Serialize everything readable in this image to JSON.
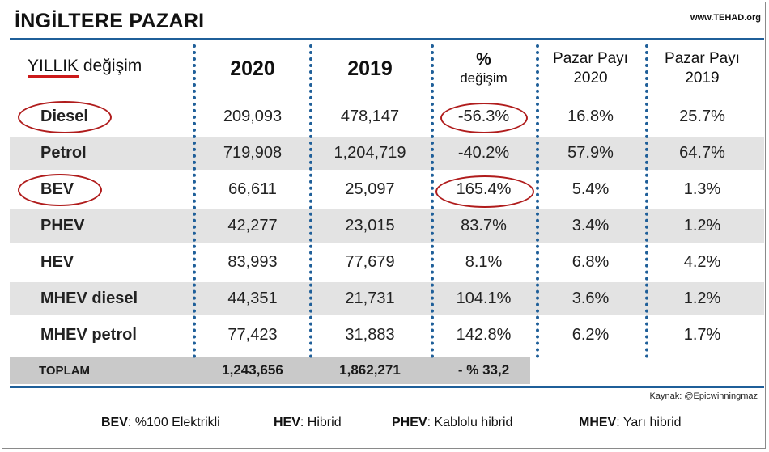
{
  "title": "İNGİLTERE PAZARI",
  "site": "www.TEHAD.org",
  "header": {
    "label_underlined": "YILLIK",
    "label_rest": " değişim",
    "col_2020": "2020",
    "col_2019": "2019",
    "col_pct_top": "%",
    "col_pct_bottom": "değişim",
    "col_share2020_top": "Pazar Payı",
    "col_share2020_bottom": "2020",
    "col_share2019_top": "Pazar Payı",
    "col_share2019_bottom": "2019"
  },
  "chart_data": {
    "type": "table",
    "columns": [
      "YILLIK değişim",
      "2020",
      "2019",
      "% değişim",
      "Pazar Payı 2020",
      "Pazar Payı 2019"
    ],
    "rows": [
      {
        "label": "Diesel",
        "v2020": "209,093",
        "v2019": "478,147",
        "pct": "-56.3%",
        "share2020": "16.8%",
        "share2019": "25.7%"
      },
      {
        "label": "Petrol",
        "v2020": "719,908",
        "v2019": "1,204,719",
        "pct": "-40.2%",
        "share2020": "57.9%",
        "share2019": "64.7%"
      },
      {
        "label": "BEV",
        "v2020": "66,611",
        "v2019": "25,097",
        "pct": "165.4%",
        "share2020": "5.4%",
        "share2019": "1.3%"
      },
      {
        "label": "PHEV",
        "v2020": "42,277",
        "v2019": "23,015",
        "pct": "83.7%",
        "share2020": "3.4%",
        "share2019": "1.2%"
      },
      {
        "label": "HEV",
        "v2020": "83,993",
        "v2019": "77,679",
        "pct": "8.1%",
        "share2020": "6.8%",
        "share2019": "4.2%"
      },
      {
        "label": "MHEV diesel",
        "v2020": "44,351",
        "v2019": "21,731",
        "pct": "104.1%",
        "share2020": "3.6%",
        "share2019": "1.2%"
      },
      {
        "label": "MHEV petrol",
        "v2020": "77,423",
        "v2019": "31,883",
        "pct": "142.8%",
        "share2020": "6.2%",
        "share2019": "1.7%"
      }
    ],
    "total": {
      "label": "TOPLAM",
      "v2020": "1,243,656",
      "v2019": "1,862,271",
      "pct": "- % 33,2"
    }
  },
  "source": "Kaynak: @Epicwinningmaz",
  "legend": [
    {
      "key": "BEV",
      "text": ": %100 Elektrikli"
    },
    {
      "key": "HEV",
      "text": ": Hibrid"
    },
    {
      "key": "PHEV",
      "text": ": Kablolu hibrid"
    },
    {
      "key": "MHEV",
      "text": ": Yarı hibrid"
    }
  ],
  "colors": {
    "accent": "#1f5f99",
    "highlight": "#b01c1c",
    "shade": "#e3e3e3",
    "total_shade": "#c9c9c9"
  }
}
